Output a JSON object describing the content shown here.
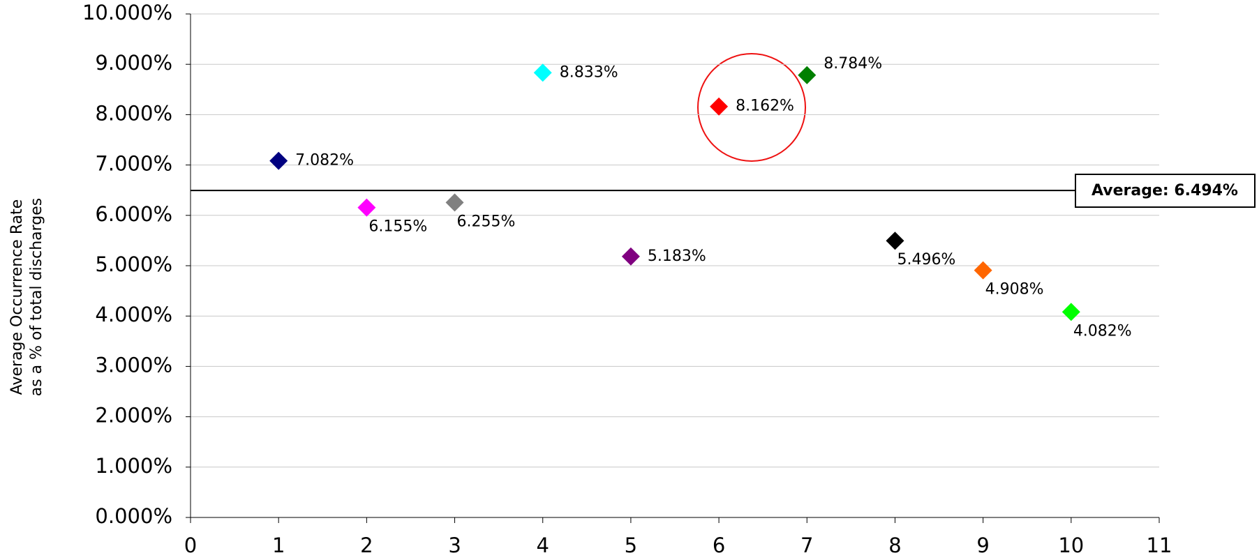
{
  "chart_data": {
    "type": "scatter",
    "y_label": [
      "Average Occurrence Rate",
      "as a % of total discharges"
    ],
    "x": [
      1,
      2,
      3,
      4,
      5,
      6,
      7,
      8,
      9,
      10
    ],
    "values": [
      7.082,
      6.155,
      6.255,
      8.833,
      5.183,
      8.162,
      8.784,
      5.496,
      4.908,
      4.082
    ],
    "value_labels": [
      "7.082%",
      "6.155%",
      "6.255%",
      "8.833%",
      "5.183%",
      "8.162%",
      "8.784%",
      "5.496%",
      "4.908%",
      "4.082%"
    ],
    "colors": [
      "#000080",
      "#ff00ff",
      "#808080",
      "#00ffff",
      "#800080",
      "#ff0000",
      "#008000",
      "#000000",
      "#ff6600",
      "#00ff00"
    ],
    "xlim": [
      0,
      11
    ],
    "xticks": [
      0,
      1,
      2,
      3,
      4,
      5,
      6,
      7,
      8,
      9,
      10,
      11
    ],
    "ylim": [
      0,
      10
    ],
    "yticks": [
      {
        "value": 0,
        "label": "0.000%"
      },
      {
        "value": 1,
        "label": "1.000%"
      },
      {
        "value": 2,
        "label": "2.000%"
      },
      {
        "value": 3,
        "label": "3.000%"
      },
      {
        "value": 4,
        "label": "4.000%"
      },
      {
        "value": 5,
        "label": "5.000%"
      },
      {
        "value": 6,
        "label": "6.000%"
      },
      {
        "value": 7,
        "label": "7.000%"
      },
      {
        "value": 8,
        "label": "8.000%"
      },
      {
        "value": 9,
        "label": "9.000%"
      },
      {
        "value": 10,
        "label": "10.000%"
      }
    ],
    "grid": true,
    "average": {
      "value": 6.494,
      "label": "Average: 6.494%"
    }
  }
}
